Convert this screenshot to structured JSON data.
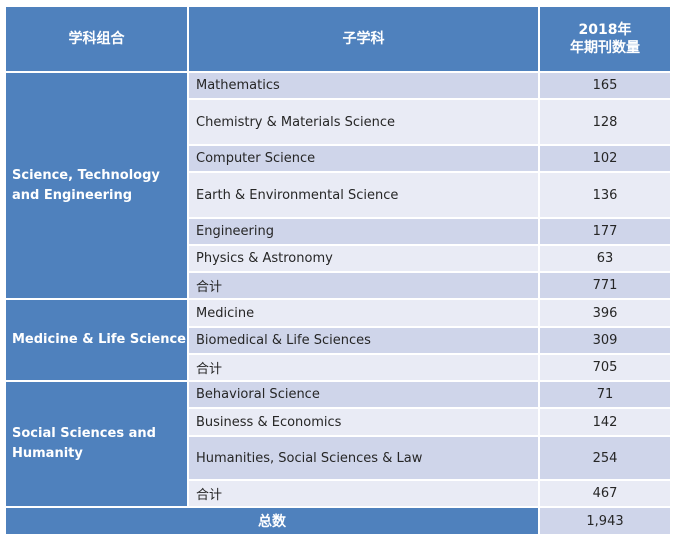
{
  "header": {
    "col1": "学科组合",
    "col2": "子学科",
    "col3_line1": "2018年",
    "col3_line2": "年期刊数量"
  },
  "groups": [
    {
      "name": "Science, Technology and Engineering",
      "rows": [
        {
          "label": "Mathematics",
          "value": "165"
        },
        {
          "label": "Chemistry & Materials Science",
          "value": "128"
        },
        {
          "label": "Computer Science",
          "value": "102"
        },
        {
          "label": "Earth & Environmental Science",
          "value": "136"
        },
        {
          "label": "Engineering",
          "value": "177"
        },
        {
          "label": "Physics & Astronomy",
          "value": "63"
        },
        {
          "label": "合计",
          "value": "771"
        }
      ]
    },
    {
      "name": "Medicine & Life Science",
      "rows": [
        {
          "label": "Medicine",
          "value": "396"
        },
        {
          "label": "Biomedical & Life Sciences",
          "value": "309"
        },
        {
          "label": "合计",
          "value": "705"
        }
      ]
    },
    {
      "name": "Social Sciences and Humanity",
      "rows": [
        {
          "label": "Behavioral Science",
          "value": "71"
        },
        {
          "label": "Business & Economics",
          "value": "142"
        },
        {
          "label": "Humanities, Social Sciences & Law",
          "value": "254"
        },
        {
          "label": "合计",
          "value": "467"
        }
      ]
    }
  ],
  "footer": {
    "label": "总数",
    "value": "1,943"
  }
}
